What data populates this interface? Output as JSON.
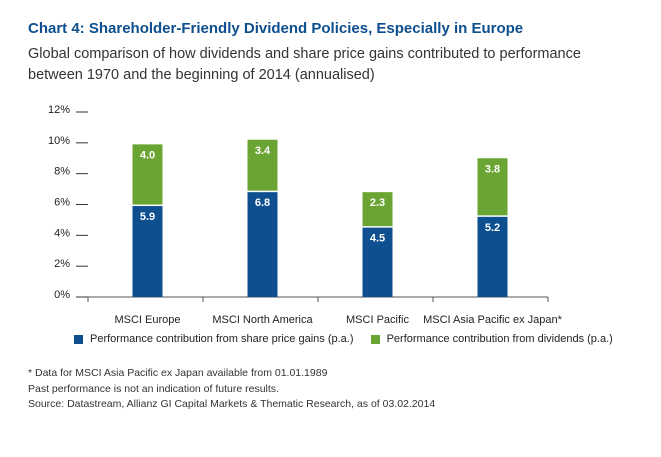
{
  "title": "Chart 4: Shareholder-Friendly Dividend Policies, Especially in Europe",
  "subtitle": "Global comparison of how dividends and share price gains contributed to performance between 1970 and the beginning of 2014 (annualised)",
  "colors": {
    "share_price": "#0d4f8f",
    "dividends": "#6aa533",
    "title": "#0d4f8f"
  },
  "chart_data": {
    "type": "bar",
    "stacked": true,
    "categories": [
      "MSCI Europe",
      "MSCI North America",
      "MSCI Pacific",
      "MSCI Asia Pacific ex Japan*"
    ],
    "series": [
      {
        "name": "Performance contribution from share price gains (p.a.)",
        "values": [
          5.9,
          6.8,
          4.5,
          5.2
        ],
        "labels": [
          "5.9",
          "6.8",
          "4.5",
          "5.2"
        ],
        "color": "#0d4f8f"
      },
      {
        "name": "Performance contribution from dividends (p.a.)",
        "values": [
          4.0,
          3.4,
          2.3,
          3.8
        ],
        "labels": [
          "4.0",
          "3.4",
          "2.3",
          "3.8"
        ],
        "color": "#6aa533"
      }
    ],
    "yticks": [
      {
        "value": 0,
        "label": "0%"
      },
      {
        "value": 2,
        "label": "2%"
      },
      {
        "value": 4,
        "label": "4%"
      },
      {
        "value": 6,
        "label": "6%"
      },
      {
        "value": 8,
        "label": "8%"
      },
      {
        "value": 10,
        "label": "10%"
      },
      {
        "value": 12,
        "label": "12%"
      }
    ],
    "ylim": [
      0,
      12
    ],
    "grid": false,
    "legend_position": "bottom"
  },
  "footnotes": [
    "* Data for MSCI Asia Pacific ex Japan available from 01.01.1989",
    "Past performance is not an indication of future results.",
    "Source: Datastream, Allianz GI Capital Markets & Thematic Research, as of 03.02.2014"
  ]
}
